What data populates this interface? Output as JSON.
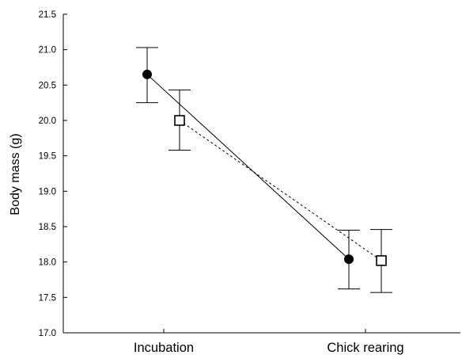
{
  "chart_data": {
    "type": "line",
    "title": "",
    "xlabel": "",
    "ylabel": "Body mass (g)",
    "categories": [
      "Incubation",
      "Chick rearing"
    ],
    "ylim": [
      17.0,
      21.5
    ],
    "yticks": [
      "17.0",
      "17.5",
      "18.0",
      "18.5",
      "19.0",
      "19.5",
      "20.0",
      "20.5",
      "21.0",
      "21.5"
    ],
    "grid": false,
    "legend": "none",
    "series": [
      {
        "marker": "filled-circle",
        "line_style": "solid",
        "values": [
          20.65,
          18.04
        ],
        "error_low": [
          20.25,
          17.62
        ],
        "error_high": [
          21.03,
          18.45
        ]
      },
      {
        "marker": "open-square",
        "line_style": "dashed",
        "values": [
          20.0,
          18.02
        ],
        "error_low": [
          19.58,
          17.57
        ],
        "error_high": [
          20.43,
          18.46
        ]
      }
    ]
  }
}
